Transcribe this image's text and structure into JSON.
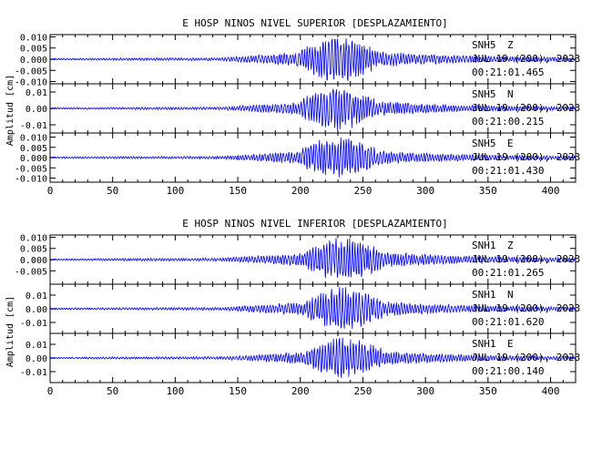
{
  "colors": {
    "trace": "#0000ff",
    "axis": "#000000",
    "background": "#ffffff"
  },
  "chart_data": [
    {
      "type": "line",
      "title": "E HOSP NINOS NIVEL SUPERIOR [DESPLAZAMIENTO]",
      "ylabel": "Amplitud [cm]",
      "xlim": [
        0,
        420
      ],
      "x_ticks": [
        "0",
        "50",
        "100",
        "150",
        "200",
        "250",
        "300",
        "350",
        "400"
      ],
      "grid": false,
      "panels": [
        {
          "name": "SNH5 Z",
          "station": "SNH5",
          "component": "Z",
          "date": "JUL 19 (200), 2023",
          "time": "00:21:01.465",
          "ylim": [
            -0.011,
            0.011
          ],
          "y_ticks": [
            "0.010",
            "0.005",
            "0.000",
            "-0.005",
            "-0.010"
          ],
          "peak_amplitude": 0.011,
          "strong_motion_window": [
            200,
            260
          ],
          "seed": 11
        },
        {
          "name": "SNH5 N",
          "station": "SNH5",
          "component": "N",
          "date": "JUL 19 (200), 2023",
          "time": "00:21:00.215",
          "ylim": [
            -0.015,
            0.015
          ],
          "y_ticks": [
            "0.01",
            "0.00",
            "-0.01"
          ],
          "peak_amplitude": 0.014,
          "strong_motion_window": [
            200,
            260
          ],
          "seed": 23
        },
        {
          "name": "SNH5 E",
          "station": "SNH5",
          "component": "E",
          "date": "JUL 19 (200), 2023",
          "time": "00:21:01.430",
          "ylim": [
            -0.012,
            0.012
          ],
          "y_ticks": [
            "0.010",
            "0.005",
            "0.000",
            "-0.005",
            "-0.010"
          ],
          "peak_amplitude": 0.011,
          "strong_motion_window": [
            200,
            260
          ],
          "seed": 37
        }
      ]
    },
    {
      "type": "line",
      "title": "E HOSP NINOS NIVEL INFERIOR [DESPLAZAMIENTO]",
      "ylabel": "Amplitud [cm]",
      "xlim": [
        0,
        420
      ],
      "x_ticks": [
        "0",
        "50",
        "100",
        "150",
        "200",
        "250",
        "300",
        "350",
        "400"
      ],
      "grid": false,
      "panels": [
        {
          "name": "SNH1 Z",
          "station": "SNH1",
          "component": "Z",
          "date": "JUL 19 (200), 2023",
          "time": "00:21:01.265",
          "ylim": [
            -0.011,
            0.011
          ],
          "y_ticks": [
            "0.010",
            "0.005",
            "0.000",
            "-0.005"
          ],
          "peak_amplitude": 0.011,
          "strong_motion_window": [
            205,
            265
          ],
          "seed": 41
        },
        {
          "name": "SNH1 N",
          "station": "SNH1",
          "component": "N",
          "date": "JUL 19 (200), 2023",
          "time": "00:21:01.620",
          "ylim": [
            -0.018,
            0.018
          ],
          "y_ticks": [
            "0.01",
            "0.00",
            "-0.01"
          ],
          "peak_amplitude": 0.017,
          "strong_motion_window": [
            205,
            265
          ],
          "seed": 53
        },
        {
          "name": "SNH1 E",
          "station": "SNH1",
          "component": "E",
          "date": "JUL 19 (200), 2023",
          "time": "00:21:00.140",
          "ylim": [
            -0.018,
            0.018
          ],
          "y_ticks": [
            "0.01",
            "0.00",
            "-0.01"
          ],
          "peak_amplitude": 0.016,
          "strong_motion_window": [
            205,
            265
          ],
          "seed": 67
        }
      ]
    }
  ]
}
